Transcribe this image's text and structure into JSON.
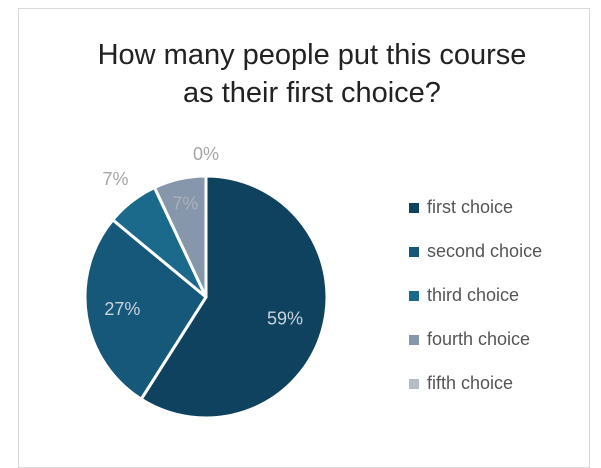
{
  "chart_data": {
    "type": "pie",
    "title": "How many people put this course as their first choice?",
    "categories": [
      "first choice",
      "second choice",
      "third choice",
      "fourth choice",
      "fifth choice"
    ],
    "values": [
      59,
      27,
      7,
      7,
      0
    ],
    "value_labels": [
      "59%",
      "27%",
      "7%",
      "7%",
      "0%"
    ],
    "colors": [
      "#0f425f",
      "#16587a",
      "#1b6a8c",
      "#8797ab",
      "#b7bdc6"
    ],
    "legend": "right"
  }
}
